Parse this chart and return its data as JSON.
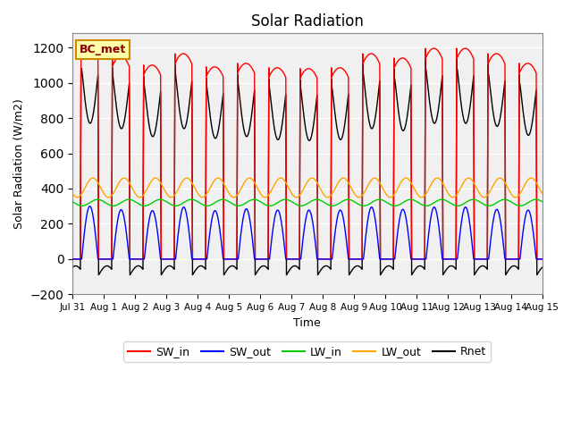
{
  "title": "Solar Radiation",
  "xlabel": "Time",
  "ylabel": "Solar Radiation (W/m2)",
  "annotation": "BC_met",
  "ylim": [
    -200,
    1280
  ],
  "yticks": [
    -200,
    0,
    200,
    400,
    600,
    800,
    1000,
    1200
  ],
  "n_days": 15,
  "SW_in_peak": [
    1200,
    1150,
    1100,
    1165,
    1090,
    1110,
    1085,
    1080,
    1085,
    1165,
    1140,
    1195,
    1195,
    1165,
    1110
  ],
  "SW_out_peak": [
    300,
    280,
    275,
    295,
    275,
    285,
    278,
    278,
    278,
    295,
    282,
    295,
    295,
    282,
    278
  ],
  "LW_in_base": 320,
  "LW_in_amp": 18,
  "LW_out_base": 405,
  "LW_out_amp": 55,
  "colors": {
    "SW_in": "#ff0000",
    "SW_out": "#0000ff",
    "LW_in": "#00cc00",
    "LW_out": "#ffa500",
    "Rnet": "#000000"
  },
  "bg_color": "#ffffff",
  "plot_bg": "#f0f0f0",
  "grid_color": "#d0d0d0"
}
